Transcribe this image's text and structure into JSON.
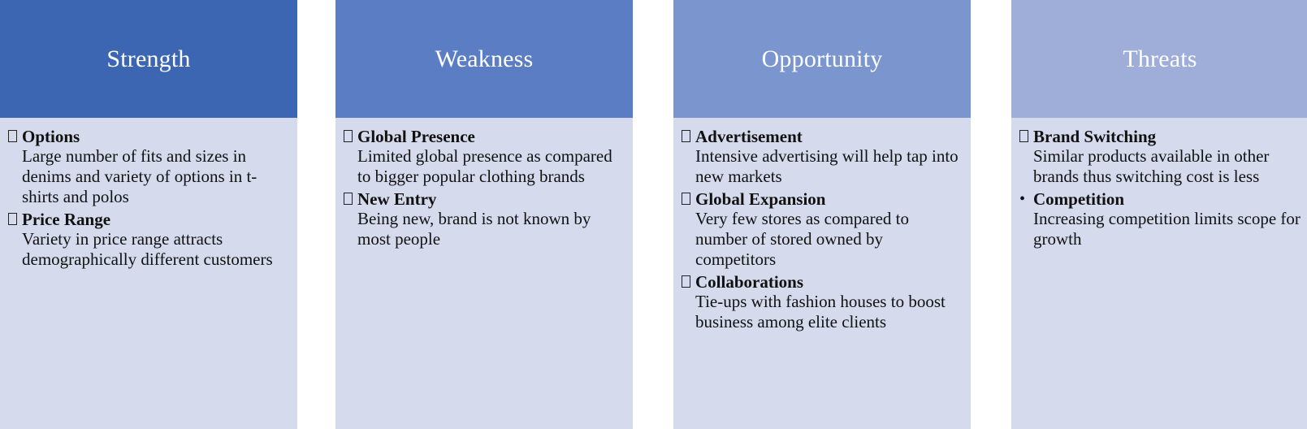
{
  "swot": [
    {
      "heading": "Strength",
      "items": [
        {
          "title": "Options",
          "desc": "Large number of fits and sizes in denims and variety of options in t-shirts and polos",
          "bullet": "box"
        },
        {
          "title": "Price Range",
          "desc": "Variety in price range attracts demographically different customers",
          "bullet": "box"
        }
      ]
    },
    {
      "heading": "Weakness",
      "items": [
        {
          "title": "Global Presence",
          "desc": "Limited global presence as compared to bigger popular clothing brands",
          "bullet": "box"
        },
        {
          "title": "New Entry",
          "desc": "Being new, brand is not known by most people",
          "bullet": "box"
        }
      ]
    },
    {
      "heading": "Opportunity",
      "items": [
        {
          "title": "Advertisement",
          "desc": "Intensive advertising will help tap into new markets",
          "bullet": "box"
        },
        {
          "title": "Global Expansion",
          "desc": "Very few stores as compared to number of stored owned by competitors",
          "bullet": "box"
        },
        {
          "title": "Collaborations",
          "desc": "Tie-ups with fashion houses to boost business among elite clients",
          "bullet": "box"
        }
      ]
    },
    {
      "heading": "Threats",
      "items": [
        {
          "title": "Brand Switching",
          "desc": "Similar products available in other brands thus switching cost is less",
          "bullet": "box"
        },
        {
          "title": "Competition",
          "desc": "Increasing competition limits scope for growth",
          "bullet": "dot"
        }
      ]
    }
  ],
  "colors": {
    "strength_header": "#3d66b2",
    "weakness_header": "#5a7dc4",
    "opportunity_header": "#7b95ce",
    "threats_header": "#9eaed9",
    "body_background": "#d5dbed"
  },
  "bullet_dot_glyph": "•"
}
